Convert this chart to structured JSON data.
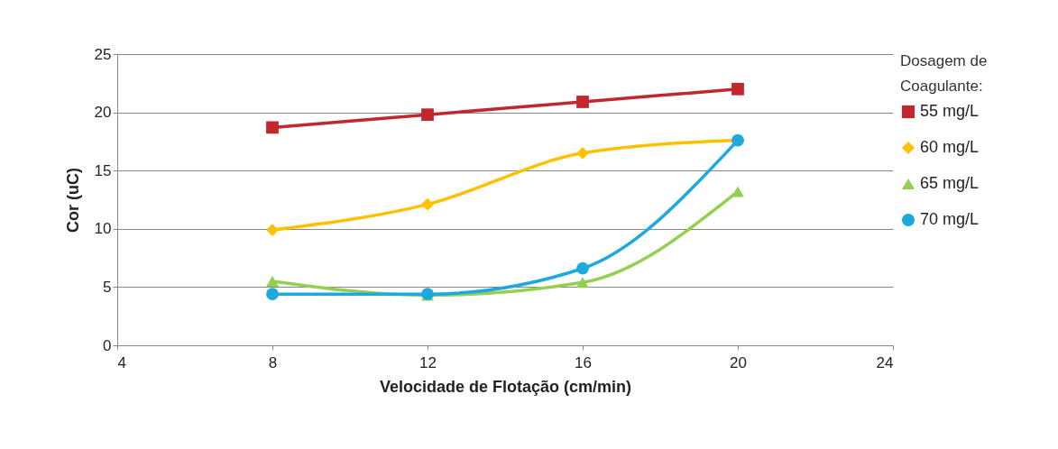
{
  "chart_data": {
    "type": "line",
    "xlabel": "Velocidade de Flotação (cm/min)",
    "ylabel": "Cor (uC)",
    "legend_title": "Dosagem de Coagulante:",
    "x": [
      8,
      12,
      16,
      20
    ],
    "xlim": [
      4,
      24
    ],
    "xticks": [
      4,
      8,
      12,
      16,
      20,
      24
    ],
    "ylim": [
      0,
      25
    ],
    "yticks": [
      0,
      5,
      10,
      15,
      20,
      25
    ],
    "grid": "y",
    "legend": "right",
    "series": [
      {
        "name": "55 mg/L",
        "color": "#c0282d",
        "marker": "square",
        "values": [
          18.7,
          19.8,
          20.9,
          22.0
        ]
      },
      {
        "name": "60 mg/L",
        "color": "#ffc000",
        "marker": "diamond",
        "values": [
          9.9,
          12.1,
          16.5,
          17.6
        ]
      },
      {
        "name": "65 mg/L",
        "color": "#92d050",
        "marker": "triangle",
        "values": [
          5.5,
          4.3,
          5.4,
          13.2
        ]
      },
      {
        "name": "70 mg/L",
        "color": "#1ea8e0",
        "marker": "circle",
        "values": [
          4.4,
          4.4,
          6.6,
          17.6
        ]
      }
    ]
  }
}
